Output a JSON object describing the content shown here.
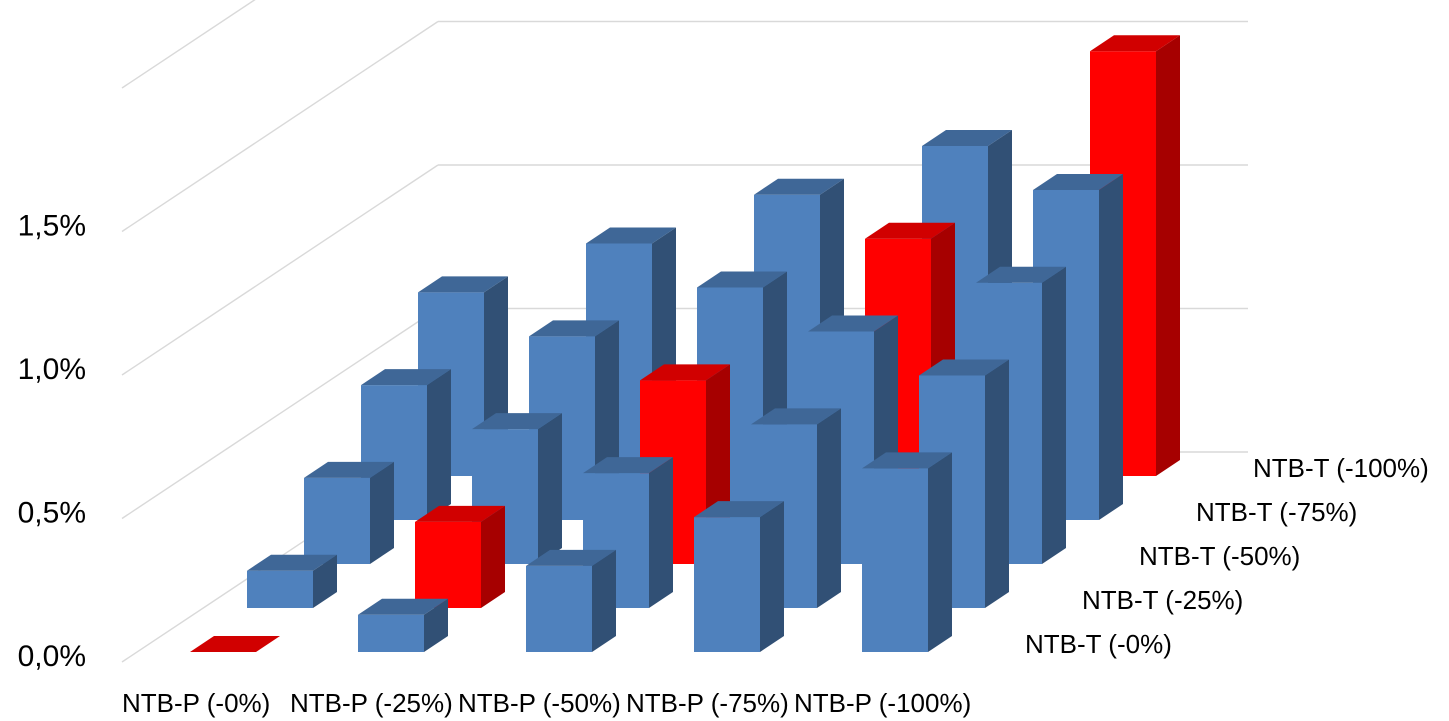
{
  "chart_data": {
    "type": "bar",
    "subtype": "3d-column",
    "categories": [
      "NTB-P (-0%)",
      "NTB-P (-25%)",
      "NTB-P (-50%)",
      "NTB-P (-75%)",
      "NTB-P (-100%)"
    ],
    "series": [
      {
        "name": "NTB-T (-0%)",
        "values": [
          0.0,
          0.13,
          0.3,
          0.47,
          0.64
        ],
        "color": "#4F81BD"
      },
      {
        "name": "NTB-T (-25%)",
        "values": [
          0.13,
          0.3,
          0.47,
          0.64,
          0.81
        ],
        "color": "#4F81BD"
      },
      {
        "name": "NTB-T (-50%)",
        "values": [
          0.3,
          0.47,
          0.64,
          0.81,
          0.98
        ],
        "color": "#4F81BD"
      },
      {
        "name": "NTB-T (-75%)",
        "values": [
          0.47,
          0.64,
          0.81,
          0.98,
          1.15
        ],
        "color": "#4F81BD"
      },
      {
        "name": "NTB-T (-100%)",
        "values": [
          0.64,
          0.81,
          0.98,
          1.15,
          1.48
        ],
        "color": "#4F81BD"
      }
    ],
    "highlight": {
      "rule": "diagonal (same reduction on P and T)",
      "color": "#FF0000"
    },
    "yticks": [
      "0,0%",
      "0,5%",
      "1,0%",
      "1,5%"
    ],
    "ytick_values": [
      0.0,
      0.5,
      1.0,
      1.5
    ],
    "ylim": [
      0,
      2.0
    ],
    "grid": true,
    "title": "",
    "xlabel": "",
    "ylabel": ""
  }
}
